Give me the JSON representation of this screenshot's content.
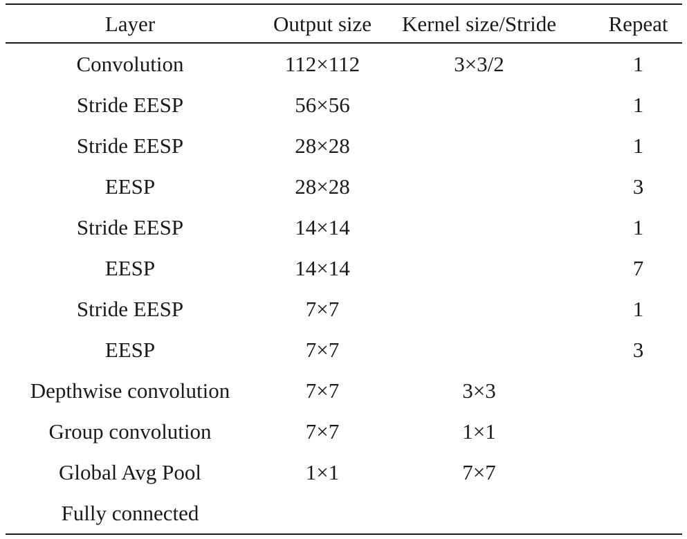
{
  "table": {
    "headers": {
      "layer": "Layer",
      "output_size": "Output size",
      "kernel_stride": "Kernel size/Stride",
      "repeat": "Repeat"
    },
    "rows": [
      {
        "layer": "Convolution",
        "output_size": "112×112",
        "kernel_stride": "3×3/2",
        "repeat": "1"
      },
      {
        "layer": "Stride EESP",
        "output_size": "56×56",
        "kernel_stride": "",
        "repeat": "1"
      },
      {
        "layer": "Stride EESP",
        "output_size": "28×28",
        "kernel_stride": "",
        "repeat": "1"
      },
      {
        "layer": "EESP",
        "output_size": "28×28",
        "kernel_stride": "",
        "repeat": "3"
      },
      {
        "layer": "Stride EESP",
        "output_size": "14×14",
        "kernel_stride": "",
        "repeat": "1"
      },
      {
        "layer": "EESP",
        "output_size": "14×14",
        "kernel_stride": "",
        "repeat": "7"
      },
      {
        "layer": "Stride EESP",
        "output_size": "7×7",
        "kernel_stride": "",
        "repeat": "1"
      },
      {
        "layer": "EESP",
        "output_size": "7×7",
        "kernel_stride": "",
        "repeat": "3"
      },
      {
        "layer": "Depthwise convolution",
        "output_size": "7×7",
        "kernel_stride": "3×3",
        "repeat": ""
      },
      {
        "layer": "Group convolution",
        "output_size": "7×7",
        "kernel_stride": "1×1",
        "repeat": ""
      },
      {
        "layer": "Global Avg Pool",
        "output_size": "1×1",
        "kernel_stride": "7×7",
        "repeat": ""
      },
      {
        "layer": "Fully connected",
        "output_size": "",
        "kernel_stride": "",
        "repeat": ""
      }
    ]
  }
}
